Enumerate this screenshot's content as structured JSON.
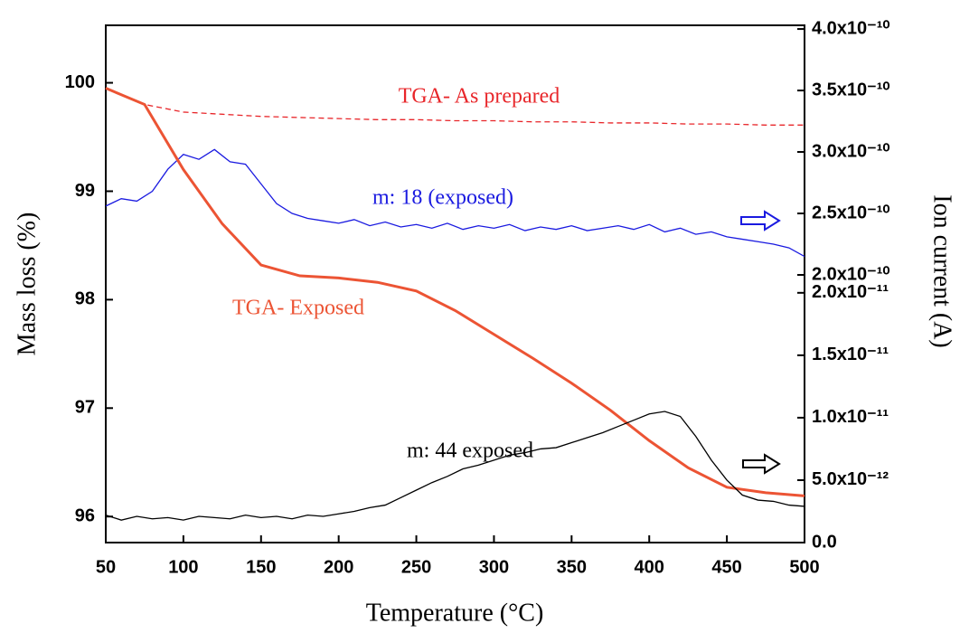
{
  "chart_data": {
    "type": "line",
    "x_label": "Temperature (°C)",
    "y_label": "Mass loss (%)",
    "y2_label": "Ion current (A)",
    "xlim": [
      50,
      500
    ],
    "xticks": [
      50,
      100,
      150,
      200,
      250,
      300,
      350,
      400,
      450,
      500
    ],
    "ylim": [
      95.76,
      100.53
    ],
    "yticks": [
      96,
      97,
      98,
      99,
      100
    ],
    "y2lim": [
      2e-10,
      4.03e-10
    ],
    "y2ticks": [
      {
        "value": 2e-10,
        "label": "2.0x10⁻¹⁰"
      },
      {
        "value": 2.5e-10,
        "label": "2.5x10⁻¹⁰"
      },
      {
        "value": 3e-10,
        "label": "3.0x10⁻¹⁰"
      },
      {
        "value": 3.5e-10,
        "label": "3.5x10⁻¹⁰"
      },
      {
        "value": 4e-10,
        "label": "4.0x10⁻¹⁰"
      }
    ],
    "y3lim": [
      0,
      2.1e-11
    ],
    "y3ticks": [
      {
        "value": 0,
        "label": "0.0"
      },
      {
        "value": 5e-12,
        "label": "5.0x10⁻¹²"
      },
      {
        "value": 1e-11,
        "label": "1.0x10⁻¹¹"
      },
      {
        "value": 1.5e-11,
        "label": "1.5x10⁻¹¹"
      },
      {
        "value": 2e-11,
        "label": "2.0x10⁻¹¹"
      }
    ],
    "series": [
      {
        "name": "TGA- As prepared",
        "color": "#e8262a",
        "dashed": true,
        "axis": "y",
        "x": [
          50,
          75,
          100,
          125,
          150,
          175,
          200,
          225,
          250,
          275,
          300,
          325,
          350,
          375,
          400,
          425,
          450,
          475,
          500
        ],
        "values": [
          99.95,
          99.8,
          99.73,
          99.71,
          99.69,
          99.68,
          99.67,
          99.66,
          99.66,
          99.65,
          99.65,
          99.64,
          99.64,
          99.63,
          99.63,
          99.62,
          99.62,
          99.61,
          99.61
        ]
      },
      {
        "name": "m: 18 (exposed)",
        "color": "#1a1ae0",
        "dashed": false,
        "axis": "y2",
        "x": [
          50,
          60,
          70,
          80,
          90,
          100,
          110,
          120,
          130,
          140,
          150,
          160,
          170,
          180,
          190,
          200,
          210,
          220,
          230,
          240,
          250,
          260,
          270,
          280,
          290,
          300,
          310,
          320,
          330,
          340,
          350,
          360,
          370,
          380,
          390,
          400,
          410,
          420,
          430,
          440,
          450,
          460,
          470,
          480,
          490,
          500
        ],
        "values": [
          2.56e-10,
          2.62e-10,
          2.6e-10,
          2.68e-10,
          2.86e-10,
          2.98e-10,
          2.94e-10,
          3.02e-10,
          2.92e-10,
          2.9e-10,
          2.74e-10,
          2.58e-10,
          2.5e-10,
          2.46e-10,
          2.44e-10,
          2.42e-10,
          2.45e-10,
          2.4e-10,
          2.43e-10,
          2.39e-10,
          2.41e-10,
          2.38e-10,
          2.42e-10,
          2.37e-10,
          2.4e-10,
          2.38e-10,
          2.41e-10,
          2.36e-10,
          2.39e-10,
          2.37e-10,
          2.4e-10,
          2.36e-10,
          2.38e-10,
          2.4e-10,
          2.37e-10,
          2.41e-10,
          2.35e-10,
          2.38e-10,
          2.33e-10,
          2.35e-10,
          2.31e-10,
          2.29e-10,
          2.27e-10,
          2.25e-10,
          2.22e-10,
          2.15e-10
        ]
      },
      {
        "name": "TGA- Exposed",
        "color": "#ec5434",
        "dashed": false,
        "axis": "y",
        "x": [
          50,
          75,
          100,
          125,
          150,
          175,
          200,
          225,
          250,
          275,
          300,
          325,
          350,
          375,
          400,
          425,
          450,
          475,
          500
        ],
        "values": [
          99.95,
          99.8,
          99.2,
          98.7,
          98.32,
          98.22,
          98.2,
          98.16,
          98.08,
          97.9,
          97.68,
          97.46,
          97.23,
          96.98,
          96.7,
          96.45,
          96.27,
          96.22,
          96.19
        ]
      },
      {
        "name": "m: 44 exposed",
        "color": "#000000",
        "dashed": false,
        "axis": "y3",
        "x": [
          50,
          60,
          70,
          80,
          90,
          100,
          110,
          120,
          130,
          140,
          150,
          160,
          170,
          180,
          190,
          200,
          210,
          220,
          230,
          240,
          250,
          260,
          270,
          280,
          290,
          300,
          310,
          320,
          330,
          340,
          350,
          360,
          370,
          380,
          390,
          400,
          410,
          420,
          430,
          440,
          450,
          460,
          470,
          480,
          490,
          500
        ],
        "values": [
          2.2e-12,
          1.8e-12,
          2.1e-12,
          1.9e-12,
          2e-12,
          1.8e-12,
          2.1e-12,
          2e-12,
          1.9e-12,
          2.2e-12,
          2e-12,
          2.1e-12,
          1.9e-12,
          2.2e-12,
          2.1e-12,
          2.3e-12,
          2.5e-12,
          2.8e-12,
          3e-12,
          3.6e-12,
          4.2e-12,
          4.8e-12,
          5.3e-12,
          5.9e-12,
          6.2e-12,
          6.6e-12,
          7e-12,
          7.2e-12,
          7.5e-12,
          7.6e-12,
          8e-12,
          8.4e-12,
          8.8e-12,
          9.3e-12,
          9.8e-12,
          1.03e-11,
          1.05e-11,
          1.01e-11,
          8.5e-12,
          6.6e-12,
          5e-12,
          3.8e-12,
          3.4e-12,
          3.3e-12,
          3e-12,
          2.9e-12
        ]
      }
    ]
  }
}
